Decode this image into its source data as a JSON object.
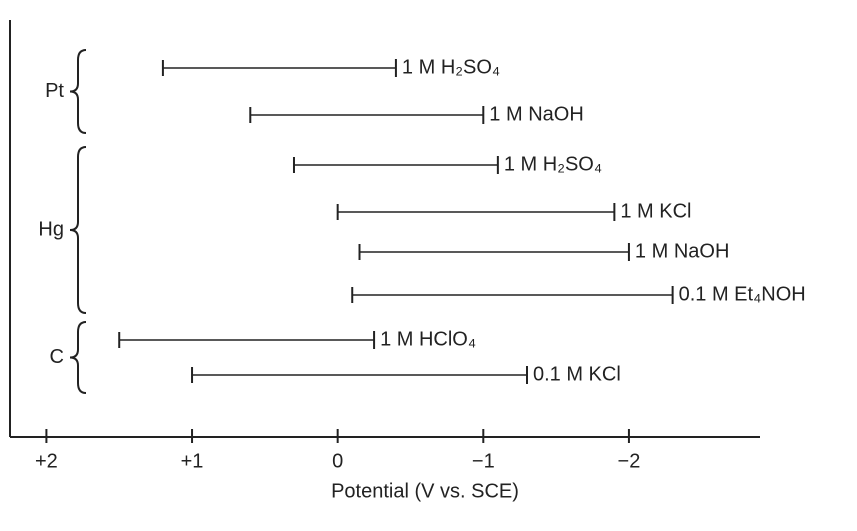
{
  "chart_data": {
    "type": "range",
    "xlabel": "Potential (V vs. SCE)",
    "xlim": [
      2.25,
      -2.9
    ],
    "xticks": [
      {
        "value": 2,
        "label": "+2"
      },
      {
        "value": 1,
        "label": "+1"
      },
      0,
      {
        "value": -1,
        "label": "−1"
      },
      {
        "value": -2,
        "label": "−2"
      }
    ],
    "color": "#222222",
    "groups": [
      {
        "name": "Pt",
        "items": [
          {
            "label": "1 M H₂SO₄",
            "range": [
              1.2,
              -0.4
            ]
          },
          {
            "label": "1 M NaOH",
            "range": [
              0.6,
              -1.0
            ]
          }
        ]
      },
      {
        "name": "Hg",
        "items": [
          {
            "label": "1 M H₂SO₄",
            "range": [
              0.3,
              -1.1
            ]
          },
          {
            "label": "1 M KCl",
            "range": [
              0.0,
              -1.9
            ]
          },
          {
            "label": "1 M NaOH",
            "range": [
              -0.15,
              -2.0
            ]
          },
          {
            "label": "0.1 M Et₄NOH",
            "range": [
              -0.1,
              -2.3
            ]
          }
        ]
      },
      {
        "name": "C",
        "items": [
          {
            "label": "1 M HClO₄",
            "range": [
              1.5,
              -0.25
            ]
          },
          {
            "label": "0.1 M KCl",
            "range": [
              1.0,
              -1.3
            ]
          }
        ]
      }
    ]
  }
}
